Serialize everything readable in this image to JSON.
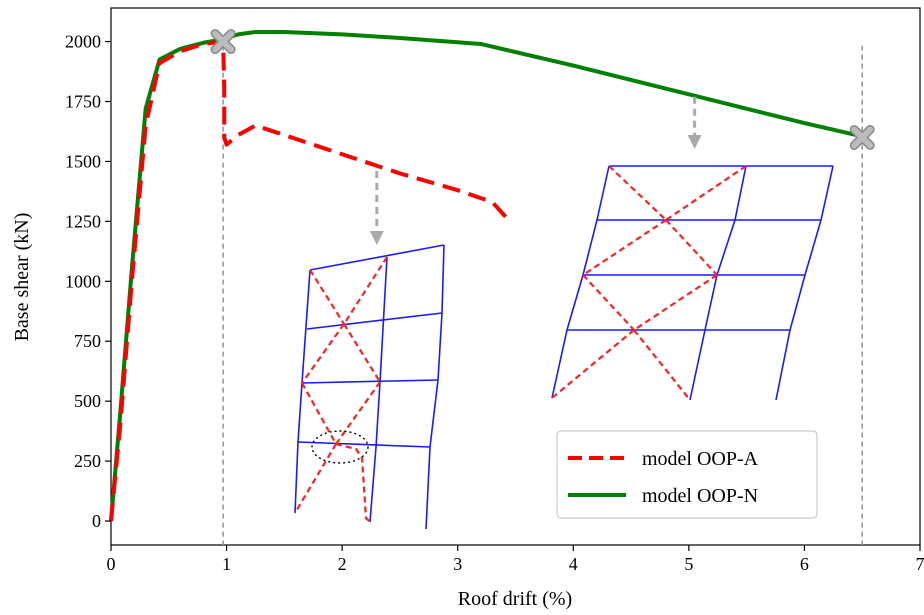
{
  "chart_data": {
    "type": "line",
    "title": "",
    "xlabel": "Roof drift (%)",
    "ylabel": "Base shear (kN)",
    "xlim": [
      0,
      7
    ],
    "ylim": [
      -100,
      2140
    ],
    "xticks": [
      0,
      1,
      2,
      3,
      4,
      5,
      6,
      7
    ],
    "yticks": [
      0,
      250,
      500,
      750,
      1000,
      1250,
      1500,
      1750,
      2000
    ],
    "grid": false,
    "legend_position": "lower-right",
    "series": [
      {
        "name": "model OOP-A",
        "color": "#ff0000",
        "style": "dashed",
        "x": [
          0,
          0.08,
          0.18,
          0.3,
          0.42,
          0.6,
          0.8,
          0.97,
          0.98,
          0.98,
          1.0,
          1.1,
          1.25,
          1.5,
          2.0,
          2.5,
          3.0,
          3.3,
          3.45
        ],
        "y": [
          0,
          400,
          1000,
          1650,
          1910,
          1960,
          1990,
          2000,
          1800,
          1600,
          1570,
          1610,
          1650,
          1610,
          1530,
          1450,
          1380,
          1330,
          1250
        ]
      },
      {
        "name": "model OOP-N",
        "color": "#008000",
        "style": "solid",
        "x": [
          0,
          0.08,
          0.18,
          0.3,
          0.42,
          0.6,
          0.8,
          0.97,
          1.1,
          1.25,
          1.5,
          2.0,
          2.5,
          3.2,
          4.0,
          5.0,
          6.0,
          6.45
        ],
        "y": [
          0,
          450,
          1050,
          1720,
          1925,
          1970,
          1995,
          2010,
          2030,
          2040,
          2040,
          2030,
          2015,
          1990,
          1900,
          1780,
          1660,
          1610
        ]
      }
    ],
    "failure_markers": [
      {
        "x": 0.97,
        "y": 2000,
        "color": "#bbbbbb"
      },
      {
        "x": 6.5,
        "y": 1600,
        "color": "#bbbbbb"
      }
    ],
    "vertical_guides": [
      0.97,
      6.5
    ],
    "pointer_arrows": [
      {
        "x": 2.3,
        "y_from": 1460,
        "y_to": 1160
      },
      {
        "x": 5.05,
        "y_from": 1770,
        "y_to": 1560
      }
    ]
  }
}
